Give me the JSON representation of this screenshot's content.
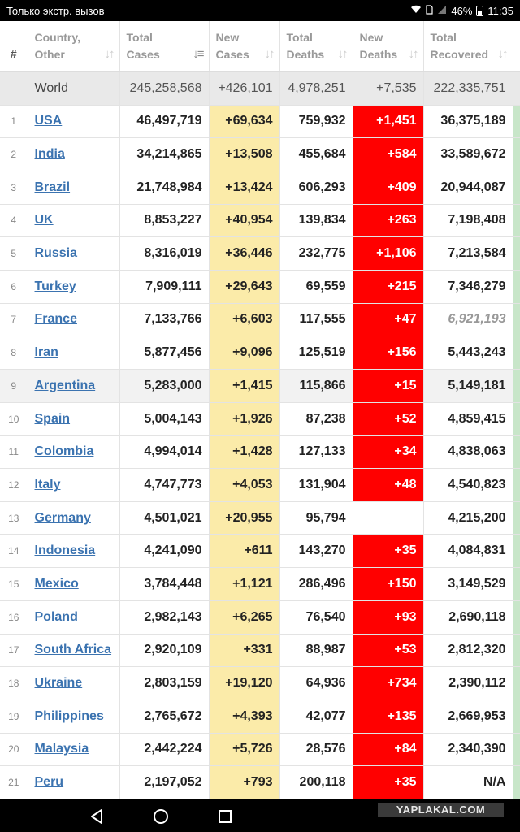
{
  "status_bar": {
    "carrier": "Только экстр. вызов",
    "battery": "46%",
    "time": "11:35"
  },
  "headers": {
    "index": "#",
    "country": [
      "Country,",
      "Other"
    ],
    "total_cases": [
      "Total",
      "Cases"
    ],
    "new_cases": [
      "New",
      "Cases"
    ],
    "total_deaths": [
      "Total",
      "Deaths"
    ],
    "new_deaths": [
      "New",
      "Deaths"
    ],
    "total_recovered": [
      "Total",
      "Recovered"
    ]
  },
  "world": {
    "name": "World",
    "total_cases": "245,258,568",
    "new_cases": "+426,101",
    "total_deaths": "4,978,251",
    "new_deaths": "+7,535",
    "total_recovered": "222,335,751"
  },
  "rows": [
    {
      "n": "1",
      "country": "USA",
      "total_cases": "46,497,719",
      "new_cases": "+69,634",
      "total_deaths": "759,932",
      "new_deaths": "+1,451",
      "total_recovered": "36,375,189"
    },
    {
      "n": "2",
      "country": "India",
      "total_cases": "34,214,865",
      "new_cases": "+13,508",
      "total_deaths": "455,684",
      "new_deaths": "+584",
      "total_recovered": "33,589,672"
    },
    {
      "n": "3",
      "country": "Brazil",
      "total_cases": "21,748,984",
      "new_cases": "+13,424",
      "total_deaths": "606,293",
      "new_deaths": "+409",
      "total_recovered": "20,944,087"
    },
    {
      "n": "4",
      "country": "UK",
      "total_cases": "8,853,227",
      "new_cases": "+40,954",
      "total_deaths": "139,834",
      "new_deaths": "+263",
      "total_recovered": "7,198,408"
    },
    {
      "n": "5",
      "country": "Russia",
      "total_cases": "8,316,019",
      "new_cases": "+36,446",
      "total_deaths": "232,775",
      "new_deaths": "+1,106",
      "total_recovered": "7,213,584"
    },
    {
      "n": "6",
      "country": "Turkey",
      "total_cases": "7,909,111",
      "new_cases": "+29,643",
      "total_deaths": "69,559",
      "new_deaths": "+215",
      "total_recovered": "7,346,279"
    },
    {
      "n": "7",
      "country": "France",
      "total_cases": "7,133,766",
      "new_cases": "+6,603",
      "total_deaths": "117,555",
      "new_deaths": "+47",
      "total_recovered": "6,921,193",
      "recovered_estimated": true
    },
    {
      "n": "8",
      "country": "Iran",
      "total_cases": "5,877,456",
      "new_cases": "+9,096",
      "total_deaths": "125,519",
      "new_deaths": "+156",
      "total_recovered": "5,443,243"
    },
    {
      "n": "9",
      "country": "Argentina",
      "total_cases": "5,283,000",
      "new_cases": "+1,415",
      "total_deaths": "115,866",
      "new_deaths": "+15",
      "total_recovered": "5,149,181",
      "highlight": true
    },
    {
      "n": "10",
      "country": "Spain",
      "total_cases": "5,004,143",
      "new_cases": "+1,926",
      "total_deaths": "87,238",
      "new_deaths": "+52",
      "total_recovered": "4,859,415"
    },
    {
      "n": "11",
      "country": "Colombia",
      "total_cases": "4,994,014",
      "new_cases": "+1,428",
      "total_deaths": "127,133",
      "new_deaths": "+34",
      "total_recovered": "4,838,063"
    },
    {
      "n": "12",
      "country": "Italy",
      "total_cases": "4,747,773",
      "new_cases": "+4,053",
      "total_deaths": "131,904",
      "new_deaths": "+48",
      "total_recovered": "4,540,823"
    },
    {
      "n": "13",
      "country": "Germany",
      "total_cases": "4,501,021",
      "new_cases": "+20,955",
      "total_deaths": "95,794",
      "new_deaths": "",
      "total_recovered": "4,215,200"
    },
    {
      "n": "14",
      "country": "Indonesia",
      "total_cases": "4,241,090",
      "new_cases": "+611",
      "total_deaths": "143,270",
      "new_deaths": "+35",
      "total_recovered": "4,084,831"
    },
    {
      "n": "15",
      "country": "Mexico",
      "total_cases": "3,784,448",
      "new_cases": "+1,121",
      "total_deaths": "286,496",
      "new_deaths": "+150",
      "total_recovered": "3,149,529"
    },
    {
      "n": "16",
      "country": "Poland",
      "total_cases": "2,982,143",
      "new_cases": "+6,265",
      "total_deaths": "76,540",
      "new_deaths": "+93",
      "total_recovered": "2,690,118"
    },
    {
      "n": "17",
      "country": "South Africa",
      "total_cases": "2,920,109",
      "new_cases": "+331",
      "total_deaths": "88,987",
      "new_deaths": "+53",
      "total_recovered": "2,812,320"
    },
    {
      "n": "18",
      "country": "Ukraine",
      "total_cases": "2,803,159",
      "new_cases": "+19,120",
      "total_deaths": "64,936",
      "new_deaths": "+734",
      "total_recovered": "2,390,112"
    },
    {
      "n": "19",
      "country": "Philippines",
      "total_cases": "2,765,672",
      "new_cases": "+4,393",
      "total_deaths": "42,077",
      "new_deaths": "+135",
      "total_recovered": "2,669,953"
    },
    {
      "n": "20",
      "country": "Malaysia",
      "total_cases": "2,442,224",
      "new_cases": "+5,726",
      "total_deaths": "28,576",
      "new_deaths": "+84",
      "total_recovered": "2,340,390"
    },
    {
      "n": "21",
      "country": "Peru",
      "total_cases": "2,197,052",
      "new_cases": "+793",
      "total_deaths": "200,118",
      "new_deaths": "+35",
      "total_recovered": "N/A"
    }
  ],
  "watermark": "YAPLAKAL.COM",
  "colors": {
    "new_cases_bg": "#fbeba9",
    "new_deaths_bg": "#ff0000",
    "link": "#3b73b0",
    "recovered_edge": "#c8e6c9"
  },
  "icons": {
    "nav_back": "back-triangle-icon",
    "nav_home": "home-circle-icon",
    "nav_recent": "recent-square-icon"
  }
}
